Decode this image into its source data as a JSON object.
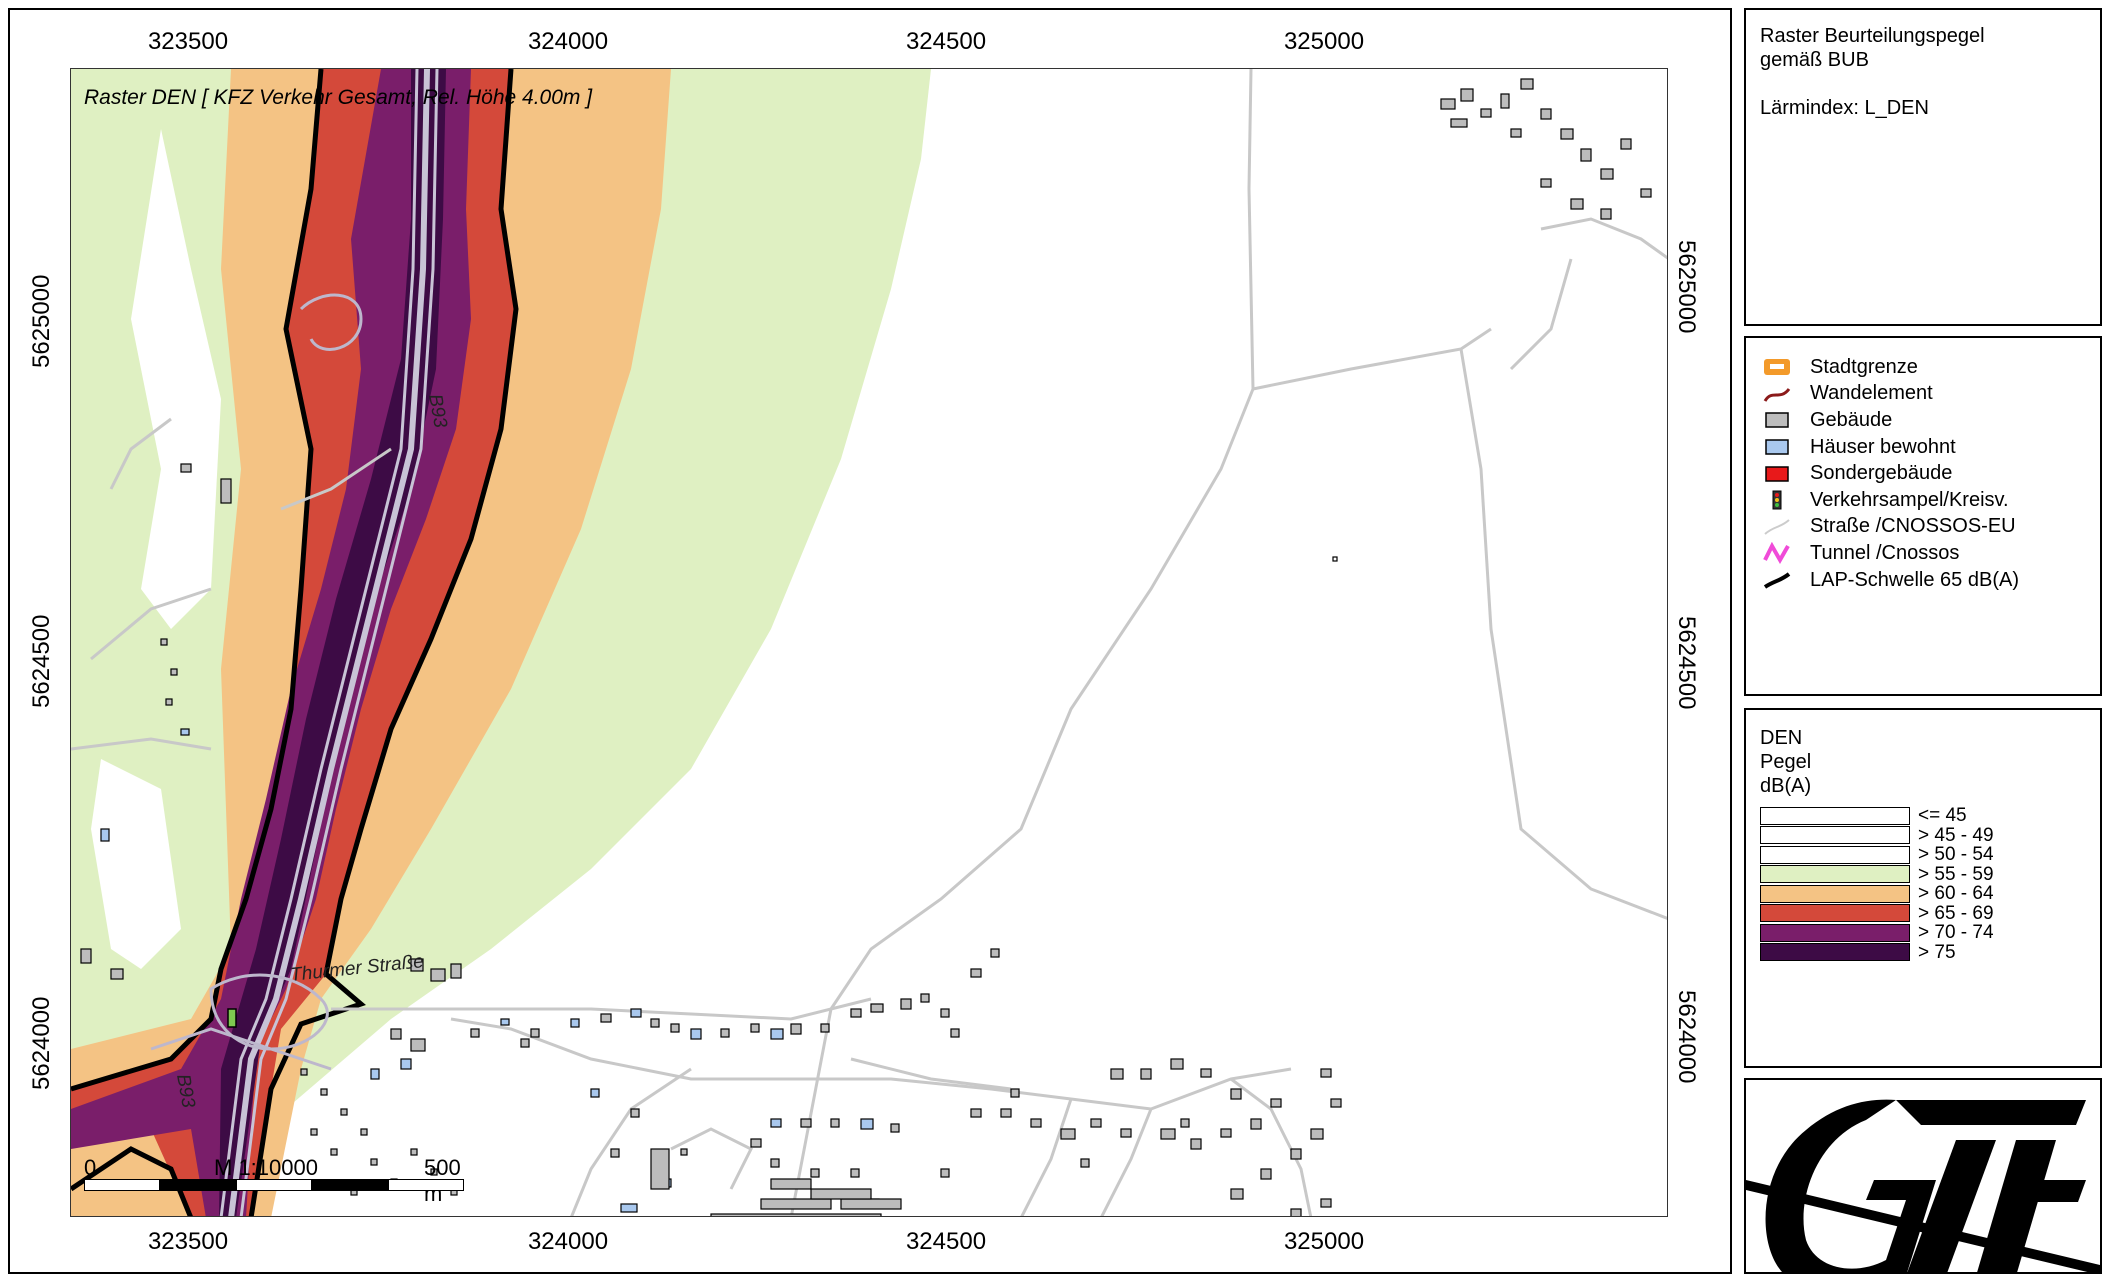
{
  "map": {
    "caption": "Raster DEN  [ KFZ Verkehr Gesamt, Rel. Höhe  4.00m ]",
    "x_ticks": [
      "323500",
      "324000",
      "324500",
      "325000"
    ],
    "y_ticks": [
      "5625000",
      "5624500",
      "5624000"
    ],
    "road_labels": {
      "b93_north": "B93",
      "b93_south": "B93",
      "thurmer": "Thurmer Straße"
    },
    "scale": {
      "zero": "0",
      "ratio": "M 1:10000",
      "end": "500 m"
    },
    "colors": {
      "level_55_59": "#dff0c2",
      "level_60_64": "#f4c384",
      "level_65_69": "#d4493a",
      "level_70_74": "#7a1e6a",
      "level_75": "#3d0b45",
      "road": "#c8c8c8",
      "house_inhabited": "#a9c8ee",
      "building": "#bdbdbd"
    }
  },
  "title_panel": {
    "line1": "Raster Beurteilungspegel",
    "line2": "gemäß BUB",
    "line3": "Lärmindex: L_DEN"
  },
  "legend": {
    "items": [
      {
        "label": "Stadtgrenze",
        "icon": "city-boundary-icon"
      },
      {
        "label": "Wandelement",
        "icon": "wall-element-icon"
      },
      {
        "label": "Gebäude",
        "icon": "building-icon"
      },
      {
        "label": "Häuser bewohnt",
        "icon": "inhabited-house-icon"
      },
      {
        "label": "Sondergebäude",
        "icon": "special-building-icon"
      },
      {
        "label": "Verkehrsampel/Kreisv.",
        "icon": "traffic-light-icon"
      },
      {
        "label": "Straße /CNOSSOS-EU",
        "icon": "road-icon"
      },
      {
        "label": "Tunnel /Cnossos",
        "icon": "tunnel-icon"
      },
      {
        "label": "LAP-Schwelle 65 dB(A)",
        "icon": "threshold-line-icon"
      }
    ]
  },
  "levels": {
    "head1": "DEN",
    "head2": "Pegel",
    "head3": "dB(A)",
    "items": [
      {
        "label": "<= 45",
        "color": "#ffffff"
      },
      {
        "label": "> 45 - 49",
        "color": "#ffffff"
      },
      {
        "label": "> 50 - 54",
        "color": "#ffffff"
      },
      {
        "label": "> 55 - 59",
        "color": "#dff0c2"
      },
      {
        "label": "> 60 - 64",
        "color": "#f4c384"
      },
      {
        "label": "> 65 - 69",
        "color": "#d4493a"
      },
      {
        "label": "> 70 - 74",
        "color": "#7a1e6a"
      },
      {
        "label": "> 75",
        "color": "#3d0b45"
      }
    ]
  },
  "logo": {
    "text": "GAF"
  }
}
